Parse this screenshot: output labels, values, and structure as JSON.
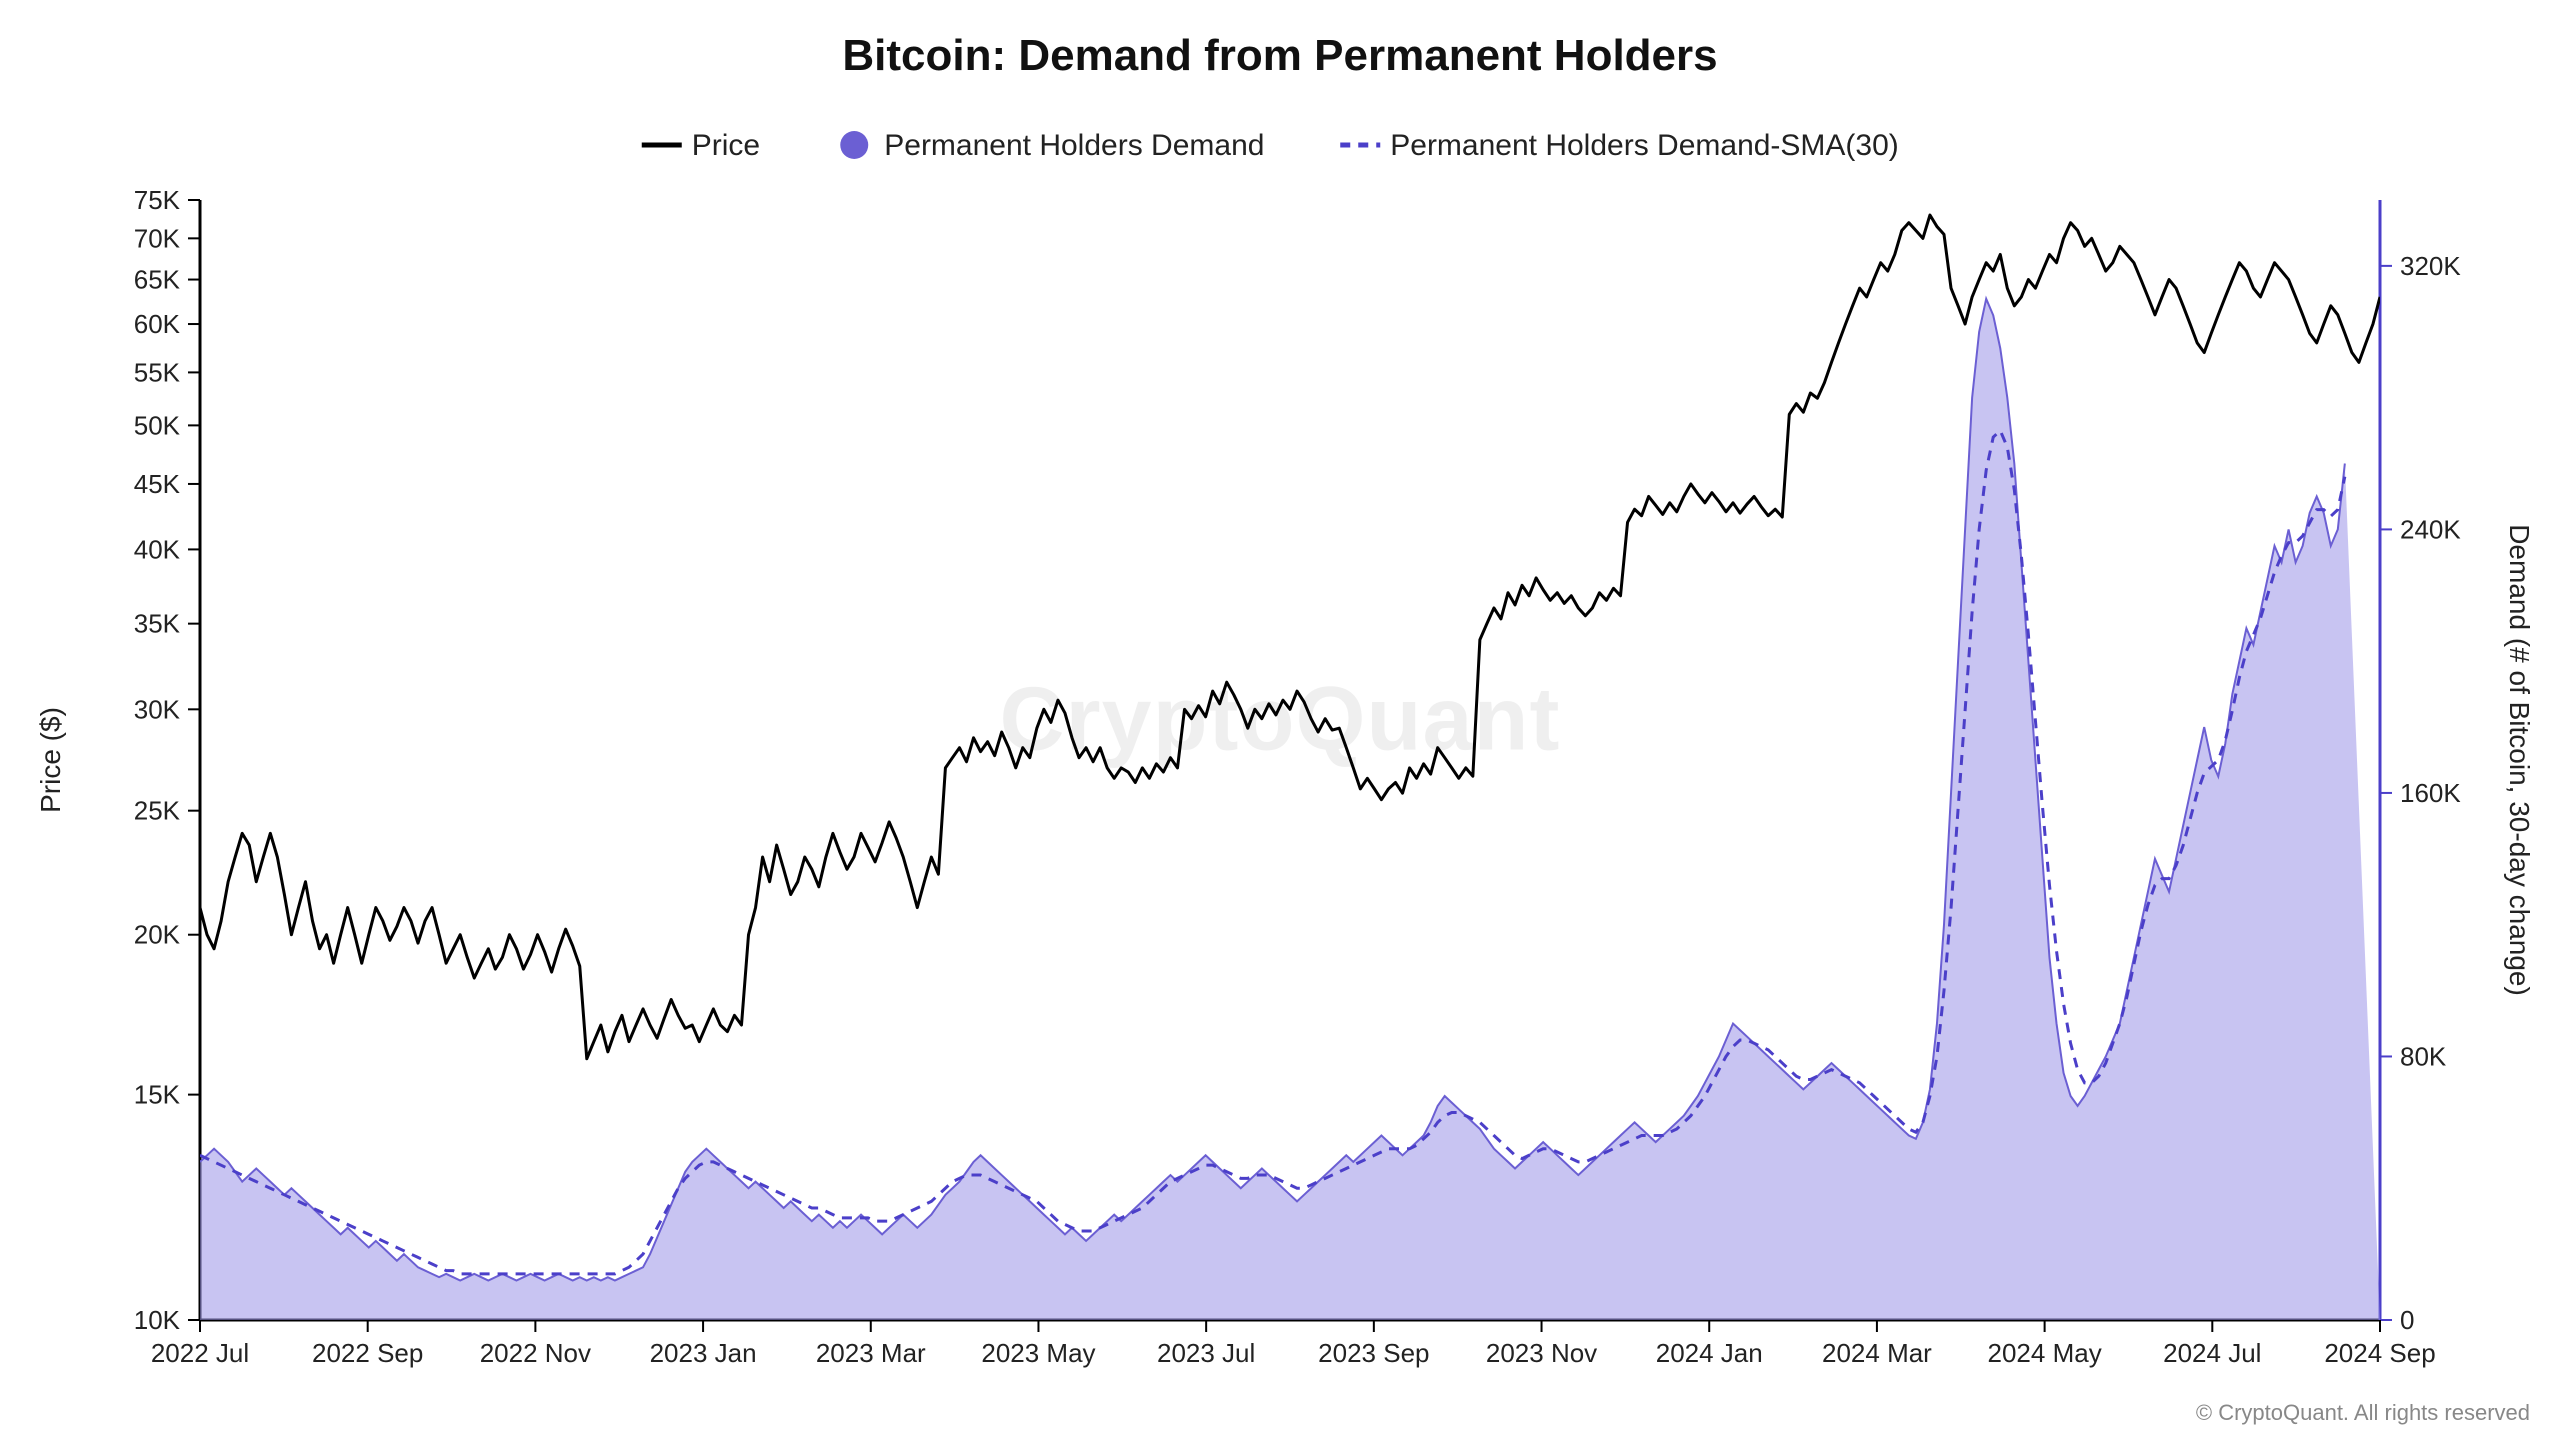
{
  "chart": {
    "type": "combo-line-area",
    "title": "Bitcoin: Demand from Permanent Holders",
    "title_fontsize": 44,
    "title_weight": "700",
    "legend": {
      "fontsize": 30,
      "items": [
        {
          "label": "Price",
          "swatch": "line",
          "color": "#000000"
        },
        {
          "label": "Permanent Holders Demand",
          "swatch": "circle",
          "color": "#6b5fd3"
        },
        {
          "label": "Permanent Holders Demand-SMA(30)",
          "swatch": "dash",
          "color": "#4b3fc9"
        }
      ]
    },
    "watermark": "CryptoQuant",
    "credit": "© CryptoQuant. All rights reserved",
    "background_color": "#ffffff",
    "plot_background": "#ffffff",
    "axis_color": "#000000",
    "axis_stroke_width": 3,
    "tick_fontsize": 26,
    "axis_label_fontsize": 28,
    "y_left": {
      "label": "Price ($)",
      "scale": "log",
      "ticks": [
        10,
        15,
        20,
        25,
        30,
        35,
        40,
        45,
        50,
        55,
        60,
        65,
        70,
        75
      ],
      "tick_labels": [
        "10K",
        "15K",
        "20K",
        "25K",
        "30K",
        "35K",
        "40K",
        "45K",
        "50K",
        "55K",
        "60K",
        "65K",
        "70K",
        "75K"
      ],
      "min": 10,
      "max": 75
    },
    "y_right": {
      "label": "Demand (# of Bitcoin, 30-day change)",
      "scale": "linear",
      "ticks": [
        0,
        80,
        160,
        240,
        320
      ],
      "tick_labels": [
        "0",
        "80K",
        "160K",
        "240K",
        "320K"
      ],
      "min": 0,
      "max": 340,
      "axis_color": "#4b3fc9"
    },
    "x": {
      "type": "time",
      "labels": [
        "2022 Jul",
        "2022 Sep",
        "2022 Nov",
        "2023 Jan",
        "2023 Mar",
        "2023 May",
        "2023 Jul",
        "2023 Sep",
        "2023 Nov",
        "2024 Jan",
        "2024 Mar",
        "2024 May",
        "2024 Jul",
        "2024 Sep"
      ]
    },
    "series": {
      "price_k": {
        "color": "#000000",
        "stroke_width": 3,
        "data": [
          21,
          20,
          19.5,
          20.5,
          22,
          23,
          24,
          23.5,
          22,
          23,
          24,
          23,
          21.5,
          20,
          21,
          22,
          20.5,
          19.5,
          20,
          19,
          20,
          21,
          20,
          19,
          20,
          21,
          20.5,
          19.8,
          20.3,
          21,
          20.5,
          19.7,
          20.5,
          21,
          20,
          19,
          19.5,
          20,
          19.2,
          18.5,
          19,
          19.5,
          18.8,
          19.2,
          20,
          19.5,
          18.8,
          19.3,
          20,
          19.4,
          18.7,
          19.5,
          20.2,
          19.6,
          18.9,
          16,
          16.5,
          17,
          16.2,
          16.8,
          17.3,
          16.5,
          17,
          17.5,
          17,
          16.6,
          17.2,
          17.8,
          17.3,
          16.9,
          17,
          16.5,
          17,
          17.5,
          17,
          16.8,
          17.3,
          17,
          20,
          21,
          23,
          22,
          23.5,
          22.5,
          21.5,
          22,
          23,
          22.5,
          21.8,
          23,
          24,
          23.2,
          22.5,
          23,
          24,
          23.4,
          22.8,
          23.6,
          24.5,
          23.8,
          23,
          22,
          21,
          22,
          23,
          22.3,
          27,
          27.5,
          28,
          27.3,
          28.5,
          27.8,
          28.3,
          27.6,
          28.8,
          28,
          27,
          28,
          27.5,
          29,
          30,
          29.3,
          30.5,
          29.8,
          28.5,
          27.5,
          28,
          27.3,
          28,
          27,
          26.5,
          27,
          26.8,
          26.3,
          27,
          26.5,
          27.2,
          26.8,
          27.5,
          27,
          30,
          29.5,
          30.2,
          29.6,
          31,
          30.3,
          31.5,
          30.8,
          30,
          29,
          30,
          29.5,
          30.3,
          29.7,
          30.5,
          30,
          31,
          30.4,
          29.5,
          28.8,
          29.5,
          28.9,
          29,
          28,
          27,
          26,
          26.5,
          26,
          25.5,
          26,
          26.3,
          25.8,
          27,
          26.5,
          27.2,
          26.7,
          28,
          27.5,
          27,
          26.5,
          27,
          26.6,
          34,
          35,
          36,
          35.3,
          37,
          36.2,
          37.5,
          36.8,
          38,
          37.2,
          36.5,
          37,
          36.3,
          36.8,
          36,
          35.5,
          36,
          37,
          36.5,
          37.3,
          36.8,
          42,
          43,
          42.5,
          44,
          43.3,
          42.6,
          43.5,
          42.8,
          44,
          45,
          44.2,
          43.5,
          44.3,
          43.6,
          42.8,
          43.5,
          42.7,
          43.4,
          44,
          43.2,
          42.5,
          43,
          42.4,
          51,
          52,
          51.2,
          53,
          52.5,
          54,
          56,
          58,
          60,
          62,
          64,
          63,
          65,
          67,
          66,
          68,
          71,
          72,
          71,
          70,
          73,
          71.5,
          70.5,
          64,
          62,
          60,
          63,
          65,
          67,
          66,
          68,
          64,
          62,
          63,
          65,
          64,
          66,
          68,
          67,
          70,
          72,
          71,
          69,
          70,
          68,
          66,
          67,
          69,
          68,
          67,
          65,
          63,
          61,
          63,
          65,
          64,
          62,
          60,
          58,
          57,
          59,
          61,
          63,
          65,
          67,
          66,
          64,
          63,
          65,
          67,
          66,
          65,
          63,
          61,
          59,
          58,
          60,
          62,
          61,
          59,
          57,
          56,
          58,
          60,
          63
        ]
      },
      "demand_k": {
        "color": "#6b5fd3",
        "fill": "#9b93e8",
        "fill_opacity": 0.55,
        "stroke_width": 2,
        "data": [
          48,
          50,
          52,
          50,
          48,
          45,
          42,
          44,
          46,
          44,
          42,
          40,
          38,
          40,
          38,
          36,
          34,
          32,
          30,
          28,
          26,
          28,
          26,
          24,
          22,
          24,
          22,
          20,
          18,
          20,
          18,
          16,
          15,
          14,
          13,
          14,
          13,
          12,
          13,
          14,
          13,
          12,
          13,
          14,
          13,
          12,
          13,
          14,
          13,
          12,
          13,
          14,
          13,
          12,
          13,
          12,
          13,
          12,
          13,
          12,
          13,
          14,
          15,
          16,
          20,
          25,
          30,
          35,
          40,
          45,
          48,
          50,
          52,
          50,
          48,
          46,
          44,
          42,
          40,
          42,
          40,
          38,
          36,
          34,
          36,
          34,
          32,
          30,
          32,
          30,
          28,
          30,
          28,
          30,
          32,
          30,
          28,
          26,
          28,
          30,
          32,
          30,
          28,
          30,
          32,
          35,
          38,
          40,
          42,
          45,
          48,
          50,
          48,
          46,
          44,
          42,
          40,
          38,
          36,
          34,
          32,
          30,
          28,
          26,
          28,
          26,
          24,
          26,
          28,
          30,
          32,
          30,
          32,
          34,
          36,
          38,
          40,
          42,
          44,
          42,
          44,
          46,
          48,
          50,
          48,
          46,
          44,
          42,
          40,
          42,
          44,
          46,
          44,
          42,
          40,
          38,
          36,
          38,
          40,
          42,
          44,
          46,
          48,
          50,
          48,
          50,
          52,
          54,
          56,
          54,
          52,
          50,
          52,
          54,
          56,
          60,
          65,
          68,
          66,
          64,
          62,
          60,
          58,
          55,
          52,
          50,
          48,
          46,
          48,
          50,
          52,
          54,
          52,
          50,
          48,
          46,
          44,
          46,
          48,
          50,
          52,
          54,
          56,
          58,
          60,
          58,
          56,
          54,
          56,
          58,
          60,
          62,
          65,
          68,
          72,
          76,
          80,
          85,
          90,
          88,
          86,
          84,
          82,
          80,
          78,
          76,
          74,
          72,
          70,
          72,
          74,
          76,
          78,
          76,
          74,
          72,
          70,
          68,
          66,
          64,
          62,
          60,
          58,
          56,
          55,
          60,
          70,
          90,
          120,
          160,
          200,
          240,
          280,
          300,
          310,
          305,
          295,
          280,
          260,
          230,
          200,
          170,
          140,
          110,
          90,
          75,
          68,
          65,
          68,
          72,
          76,
          80,
          85,
          90,
          100,
          110,
          120,
          130,
          140,
          135,
          130,
          140,
          150,
          160,
          170,
          180,
          170,
          165,
          175,
          190,
          200,
          210,
          205,
          215,
          225,
          235,
          230,
          240,
          230,
          235,
          245,
          250,
          245,
          235,
          240,
          260
        ]
      },
      "sma_k": {
        "color": "#4b3fc9",
        "stroke_width": 3,
        "dash": "10 8",
        "data": [
          50,
          49,
          48,
          47,
          46,
          45,
          44,
          43,
          42,
          41,
          40,
          39,
          38,
          37,
          36,
          35,
          34,
          33,
          32,
          31,
          30,
          29,
          28,
          27,
          26,
          25,
          24,
          23,
          22,
          21,
          20,
          19,
          18,
          17,
          16,
          15,
          15,
          14,
          14,
          14,
          14,
          14,
          14,
          14,
          14,
          14,
          14,
          14,
          14,
          14,
          14,
          14,
          14,
          14,
          14,
          14,
          14,
          14,
          14,
          14,
          15,
          16,
          18,
          20,
          24,
          28,
          32,
          36,
          40,
          43,
          45,
          47,
          48,
          48,
          47,
          46,
          45,
          44,
          43,
          42,
          41,
          40,
          39,
          38,
          37,
          36,
          35,
          34,
          34,
          33,
          32,
          31,
          31,
          31,
          31,
          31,
          30,
          30,
          30,
          31,
          32,
          33,
          34,
          35,
          36,
          38,
          40,
          42,
          43,
          44,
          44,
          44,
          43,
          42,
          41,
          40,
          39,
          38,
          37,
          36,
          34,
          32,
          30,
          29,
          28,
          27,
          27,
          27,
          28,
          29,
          30,
          31,
          32,
          33,
          34,
          36,
          38,
          40,
          42,
          43,
          44,
          45,
          46,
          47,
          47,
          46,
          45,
          44,
          43,
          43,
          44,
          44,
          44,
          43,
          42,
          41,
          40,
          40,
          41,
          42,
          43,
          44,
          45,
          46,
          47,
          48,
          49,
          50,
          51,
          52,
          52,
          52,
          52,
          53,
          55,
          57,
          60,
          62,
          63,
          63,
          62,
          61,
          60,
          58,
          56,
          54,
          52,
          50,
          49,
          50,
          51,
          52,
          52,
          51,
          50,
          49,
          48,
          48,
          49,
          50,
          51,
          52,
          53,
          54,
          55,
          56,
          56,
          56,
          56,
          57,
          58,
          60,
          62,
          65,
          68,
          72,
          76,
          80,
          83,
          85,
          85,
          84,
          83,
          82,
          80,
          78,
          76,
          74,
          73,
          73,
          74,
          75,
          76,
          75,
          74,
          73,
          72,
          70,
          68,
          66,
          64,
          62,
          60,
          58,
          57,
          60,
          68,
          80,
          100,
          125,
          155,
          185,
          215,
          240,
          258,
          268,
          270,
          265,
          252,
          232,
          208,
          182,
          156,
          132,
          112,
          96,
          84,
          76,
          72,
          72,
          74,
          78,
          84,
          90,
          98,
          108,
          118,
          126,
          132,
          134,
          134,
          138,
          144,
          152,
          160,
          166,
          168,
          170,
          176,
          185,
          195,
          203,
          208,
          213,
          220,
          227,
          232,
          236,
          236,
          238,
          242,
          246,
          246,
          244,
          246,
          256
        ]
      }
    }
  }
}
